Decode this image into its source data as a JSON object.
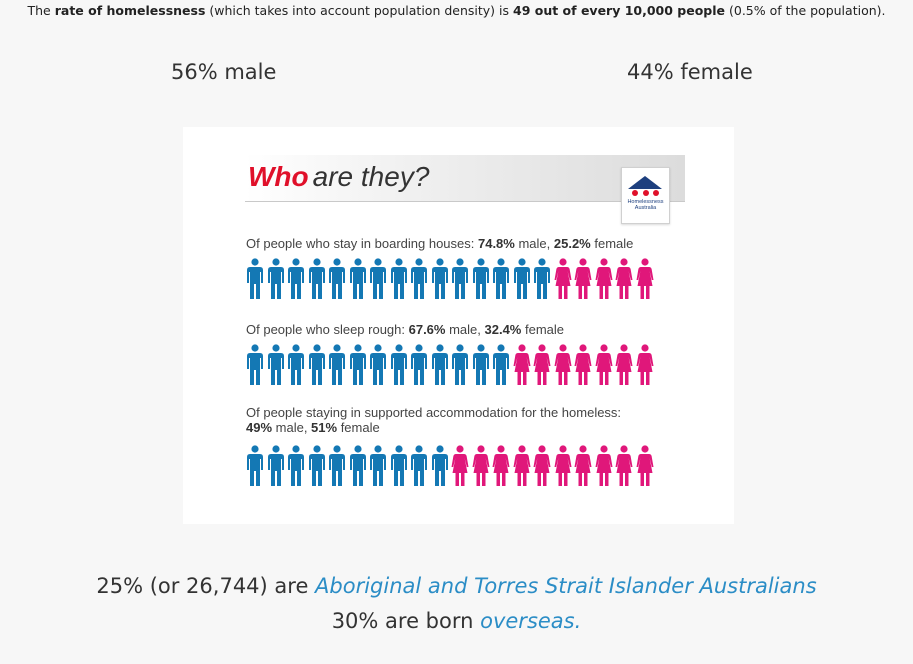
{
  "intro": {
    "p1": "The ",
    "b1": "rate of homelessness",
    "p2": " (which takes into account population density) is ",
    "b2": "49 out of every 10,000 people",
    "p3": " (0.5% of the population)."
  },
  "gender": {
    "male": "56% male",
    "female": "44% female"
  },
  "infographic": {
    "title_red": "Who",
    "title_rest": "are they?",
    "logo_text_1": "Homelessness",
    "logo_text_2": "Australia",
    "colors": {
      "male": "#1478b4",
      "female": "#e0177a",
      "title_red": "#e0102a"
    },
    "rows": [
      {
        "label_pre": "Of people who stay in boarding houses: ",
        "male_pct": "74.8%",
        "mid": " male, ",
        "female_pct": "25.2%",
        "post": " female",
        "male_count": 15,
        "female_count": 5
      },
      {
        "label_pre": "Of people who sleep rough: ",
        "male_pct": "67.6%",
        "mid": " male, ",
        "female_pct": "32.4%",
        "post": " female",
        "male_count": 13,
        "female_count": 7
      },
      {
        "label_line1": "Of people staying in supported accommodation for the homeless:",
        "male_pct": "49%",
        "mid": " male, ",
        "female_pct": "51%",
        "post": " female",
        "male_count": 10,
        "female_count": 10
      }
    ]
  },
  "facts": {
    "aboriginal_pre": "25% (or 26,744) are ",
    "aboriginal_link": "Aboriginal and Torres Strait Islander Australians",
    "overseas_pre": "30% are born ",
    "overseas_link": "overseas."
  }
}
